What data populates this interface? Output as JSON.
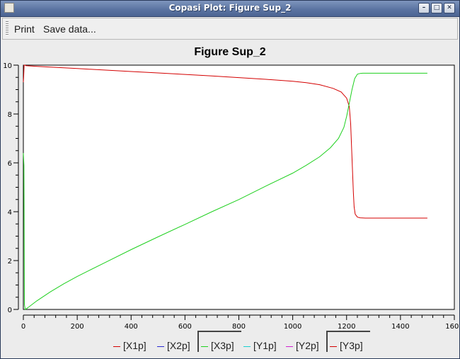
{
  "window": {
    "title": "Copasi Plot: Figure Sup_2"
  },
  "toolbar": {
    "print_label": "Print",
    "save_label": "Save data..."
  },
  "chart_data": {
    "type": "line",
    "title": "Figure Sup_2",
    "xlim": [
      0,
      1600
    ],
    "ylim": [
      0,
      10
    ],
    "xticks": [
      0,
      200,
      400,
      600,
      800,
      1000,
      1200,
      1400,
      1600
    ],
    "yticks": [
      0,
      2,
      4,
      6,
      8,
      10
    ],
    "xtick_labels": [
      "0",
      "200",
      "400",
      "600",
      "800",
      "1000",
      "1200",
      "1400",
      "1600"
    ],
    "ytick_labels": [
      "0",
      "2",
      "4",
      "6",
      "8",
      "10"
    ],
    "grid": false,
    "legend_position": "bottom",
    "series": [
      {
        "name": "[X1p]",
        "color": "#d40000",
        "x": [
          0,
          1,
          3,
          6,
          10,
          50,
          100,
          200,
          300,
          400,
          500,
          600,
          700,
          800,
          900,
          1000,
          1050,
          1100,
          1150,
          1180,
          1200,
          1210,
          1215,
          1220,
          1225,
          1228,
          1232,
          1240,
          1250,
          1270,
          1300,
          1400,
          1500
        ],
        "y": [
          9.3,
          9.5,
          10.0,
          10.0,
          9.98,
          9.95,
          9.92,
          9.86,
          9.8,
          9.74,
          9.68,
          9.62,
          9.56,
          9.49,
          9.42,
          9.34,
          9.28,
          9.2,
          9.05,
          8.9,
          8.65,
          8.3,
          7.6,
          6.2,
          4.8,
          4.2,
          3.9,
          3.78,
          3.75,
          3.74,
          3.74,
          3.74,
          3.74
        ]
      },
      {
        "name": "[X2p]",
        "color": "#2a2ad4",
        "x": [],
        "y": []
      },
      {
        "name": "[X3p]",
        "color": "#1ed01e",
        "x": [
          0,
          2,
          4,
          7,
          10,
          20,
          50,
          100,
          150,
          200,
          300,
          400,
          500,
          600,
          700,
          800,
          900,
          1000,
          1050,
          1100,
          1140,
          1170,
          1190,
          1200,
          1210,
          1220,
          1230,
          1240,
          1250,
          1260,
          1300,
          1400,
          1500
        ],
        "y": [
          6.4,
          5.9,
          0.2,
          0.0,
          0.02,
          0.1,
          0.35,
          0.72,
          1.05,
          1.35,
          1.9,
          2.45,
          2.97,
          3.48,
          4.0,
          4.5,
          5.05,
          5.58,
          5.9,
          6.25,
          6.62,
          7.0,
          7.45,
          7.9,
          8.45,
          9.0,
          9.45,
          9.63,
          9.66,
          9.67,
          9.67,
          9.67,
          9.67
        ]
      },
      {
        "name": "[Y1p]",
        "color": "#18d0d0",
        "x": [],
        "y": []
      },
      {
        "name": "[Y2p]",
        "color": "#d020d0",
        "x": [],
        "y": []
      },
      {
        "name": "[Y3p]",
        "color": "#d40000",
        "x": [],
        "y": []
      }
    ]
  }
}
